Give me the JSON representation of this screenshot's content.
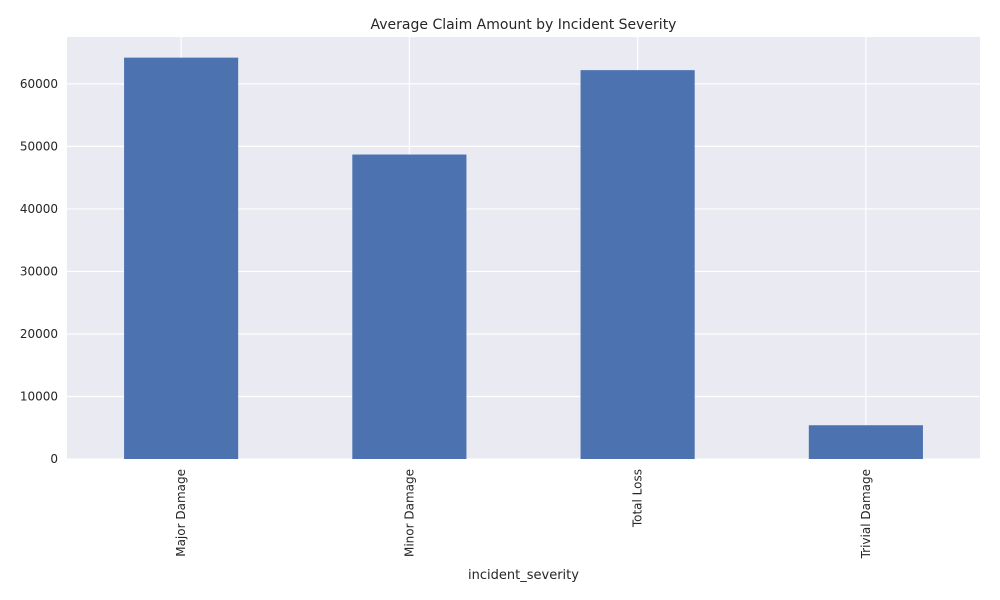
{
  "chart_data": {
    "type": "bar",
    "title": "Average Claim Amount by Incident Severity",
    "xlabel": "incident_severity",
    "ylabel": "",
    "categories": [
      "Major Damage",
      "Minor Damage",
      "Total Loss",
      "Trivial Damage"
    ],
    "values": [
      64200,
      48700,
      62200,
      5400
    ],
    "ylim": [
      0,
      67500
    ],
    "yticks": [
      0,
      10000,
      20000,
      30000,
      40000,
      50000,
      60000
    ],
    "ytick_labels": [
      "0",
      "10000",
      "20000",
      "30000",
      "40000",
      "50000",
      "60000"
    ],
    "grid": true,
    "legend": "none",
    "colors": {
      "bar": "#4c72b0",
      "background": "#eaeaf2",
      "grid": "#ffffff"
    }
  }
}
